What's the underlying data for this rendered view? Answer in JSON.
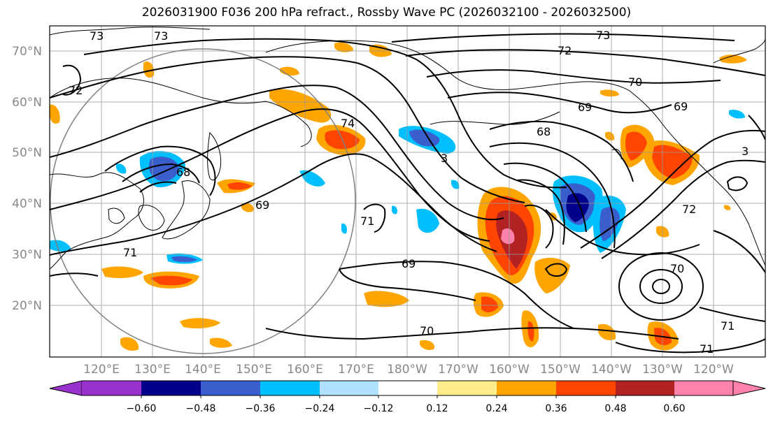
{
  "title": "2026031900 F036 200 hPa refract., Rossby Wave PC (2026032100 - 2026032500)",
  "map": {
    "lat_labels": [
      "70°N",
      "60°N",
      "50°N",
      "40°N",
      "30°N",
      "20°N"
    ],
    "lon_labels": [
      "120°E",
      "130°E",
      "140°E",
      "150°E",
      "160°E",
      "170°E",
      "180°W",
      "170°W",
      "160°W",
      "150°W",
      "140°W",
      "130°W",
      "120°W"
    ],
    "contour_labels": [
      "73",
      "72",
      "70",
      "69",
      "68",
      "73",
      "73",
      "74",
      "72",
      "68",
      "69",
      "69",
      "71",
      "71",
      "69",
      "70",
      "70",
      "71",
      "71",
      "72",
      "3",
      "3"
    ]
  },
  "colorbar": {
    "colors": [
      "#9932cc",
      "#00008b",
      "#3a5fcd",
      "#00bfff",
      "#b0e2ff",
      "#ffffff",
      "#ffec8b",
      "#ffa500",
      "#ff4500",
      "#b22222",
      "#ff82ab"
    ],
    "labels": [
      "−0.60",
      "−0.48",
      "−0.36",
      "−0.24",
      "−0.12",
      "0.12",
      "0.24",
      "0.36",
      "0.48",
      "0.60"
    ]
  }
}
